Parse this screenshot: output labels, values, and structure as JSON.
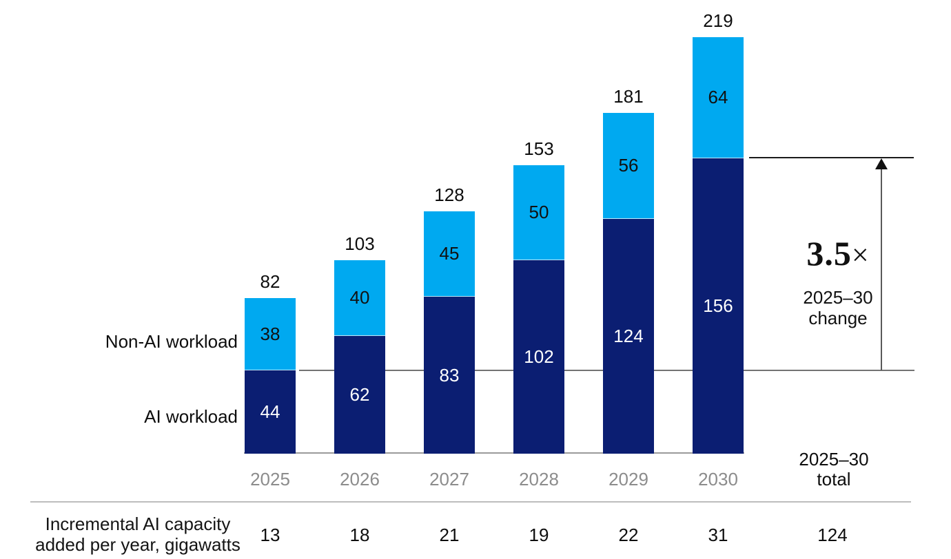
{
  "colors": {
    "ai_fill": "#0b1e72",
    "non_ai_fill": "#00a9f0",
    "ai_value_text": "#ffffff",
    "non_ai_value_text": "#111111",
    "year_label_text": "#8c8c8c",
    "ref_line_gray": "#737373",
    "ref_line_black": "#1a1a1a",
    "baseline_gray": "#9a9a9a",
    "separator_gray": "#bdbdbd"
  },
  "series_labels": {
    "non_ai": "Non-AI workload",
    "ai": "AI workload"
  },
  "annotation": {
    "multiplier_value": "3.5",
    "multiplier_sign": "×",
    "line1": "2025–30",
    "line2": "change"
  },
  "total_column": {
    "header_line1": "2025–30",
    "header_line2": "total"
  },
  "footer": {
    "row_label_line1": "Incremental AI capacity",
    "row_label_line2": "added per year, gigawatts"
  },
  "chart_data": {
    "type": "stacked_bar",
    "unit": "gigawatts",
    "categories": [
      "2025",
      "2026",
      "2027",
      "2028",
      "2029",
      "2030"
    ],
    "series": [
      {
        "name": "AI workload",
        "values": [
          44,
          62,
          83,
          102,
          124,
          156
        ],
        "color": "#0b1e72"
      },
      {
        "name": "Non-AI workload",
        "values": [
          38,
          40,
          45,
          50,
          56,
          64
        ],
        "color": "#00a9f0"
      }
    ],
    "totals": [
      82,
      103,
      128,
      153,
      181,
      219
    ],
    "incremental_ai_capacity_per_year": [
      13,
      18,
      21,
      19,
      22,
      31
    ],
    "incremental_total": 124,
    "change_2025_30_multiplier": "3.5×",
    "legend_position": "left-of-first-bar",
    "grid": false
  }
}
